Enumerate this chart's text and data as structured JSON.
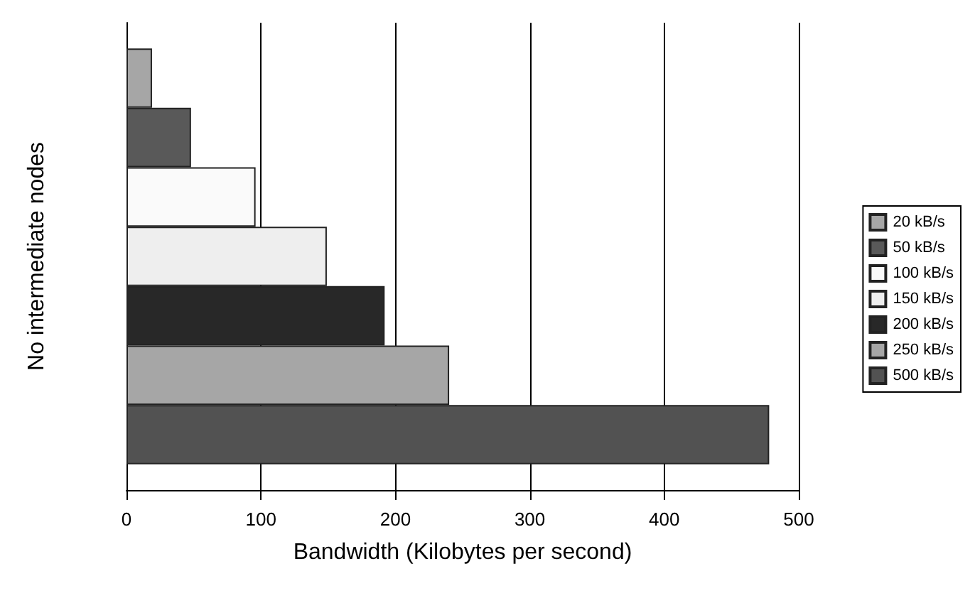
{
  "chart_data": {
    "type": "bar",
    "orientation": "horizontal",
    "xlabel": "Bandwidth (Kilobytes per second)",
    "ylabel": "No intermediate nodes",
    "categories": [
      null
    ],
    "series": [
      {
        "name": "20 kB/s",
        "color": "#a6a6a6",
        "values": [
          19
        ]
      },
      {
        "name": "50 kB/s",
        "color": "#595959",
        "values": [
          48
        ]
      },
      {
        "name": "100 kB/s",
        "color": "#fafafa",
        "values": [
          96
        ]
      },
      {
        "name": "150 kB/s",
        "color": "#eeeeee",
        "values": [
          149
        ]
      },
      {
        "name": "200 kB/s",
        "color": "#282828",
        "values": [
          192
        ]
      },
      {
        "name": "250 kB/s",
        "color": "#a6a6a6",
        "values": [
          240
        ]
      },
      {
        "name": "500 kB/s",
        "color": "#525252",
        "values": [
          478
        ]
      }
    ],
    "xlim": [
      0,
      500
    ],
    "xticks": [
      0,
      100,
      200,
      300,
      400,
      500
    ],
    "grid": "x",
    "legend": "right"
  }
}
